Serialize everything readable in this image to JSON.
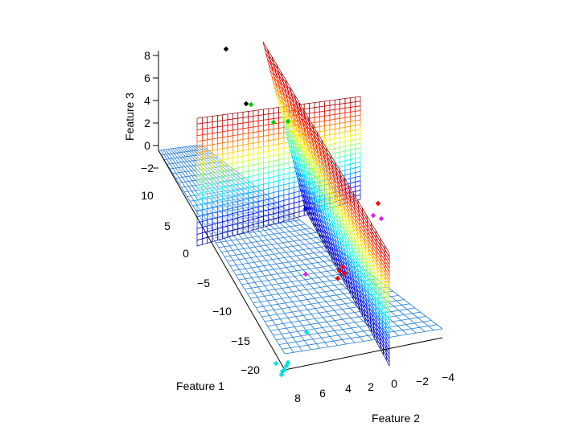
{
  "chart_data": {
    "type": "scatter3d",
    "title": "",
    "xlabel": "Feature 2",
    "ylabel": "Feature 1",
    "zlabel": "Feature 3",
    "x_ticks": [
      "8",
      "6",
      "4",
      "2",
      "0",
      "−2",
      "−4"
    ],
    "y_ticks": [
      "10",
      "5",
      "0",
      "−5",
      "−10",
      "−15",
      "−20"
    ],
    "z_ticks": [
      "8",
      "6",
      "4",
      "2",
      "0",
      "−2"
    ],
    "xlim": [
      8,
      -4
    ],
    "ylim": [
      10,
      -20
    ],
    "zlim": [
      -2,
      8
    ],
    "surfaces": [
      {
        "name": "horizontal",
        "z": -2,
        "color": "#1f7ad1"
      },
      {
        "name": "vertical-1",
        "colormap": "jet"
      },
      {
        "name": "vertical-2",
        "colormap": "jet"
      }
    ],
    "series": [
      {
        "color": "#000000",
        "points": [
          {
            "x": 3.4,
            "y": 10,
            "z": 8
          },
          {
            "x": 2.8,
            "y": 5,
            "z": 4
          }
        ]
      },
      {
        "color": "#00cc00",
        "points": [
          {
            "x": 2.6,
            "y": 5,
            "z": 4
          },
          {
            "x": 1.9,
            "y": 3,
            "z": 2
          },
          {
            "x": 1.2,
            "y": 2,
            "z": 2
          }
        ]
      },
      {
        "color": "#ff0000",
        "points": [
          {
            "x": -3.4,
            "y": -6,
            "z": 1.5
          },
          {
            "x": -2.2,
            "y": -12,
            "z": -1.5
          },
          {
            "x": -2.4,
            "y": -11.6,
            "z": -1.5
          },
          {
            "x": -2.3,
            "y": -12.4,
            "z": -1.4
          },
          {
            "x": -2.0,
            "y": -12.6,
            "z": -1.8
          }
        ]
      },
      {
        "color": "#e020e0",
        "points": [
          {
            "x": -3.3,
            "y": -7,
            "z": 0.8
          },
          {
            "x": -3.7,
            "y": -7.3,
            "z": 0.6
          },
          {
            "x": 0.0,
            "y": -11.5,
            "z": -1.7
          }
        ]
      },
      {
        "color": "#0000ff",
        "points": [
          {
            "x": 0.2,
            "y": -7.5,
            "z": -2
          }
        ]
      },
      {
        "color": "#00e0e0",
        "points": [
          {
            "x": 2.0,
            "y": -17,
            "z": -2.8
          },
          {
            "x": 7.2,
            "y": -21.5,
            "z": -2.5
          },
          {
            "x": 7.0,
            "y": -22,
            "z": -2.6
          },
          {
            "x": 7.4,
            "y": -22.6,
            "z": -2.6
          },
          {
            "x": 7.6,
            "y": -22.8,
            "z": -2.6
          },
          {
            "x": 6.8,
            "y": -21.0,
            "z": -2.4
          },
          {
            "x": 7.8,
            "y": -22.2,
            "z": -2.5
          }
        ]
      }
    ]
  }
}
